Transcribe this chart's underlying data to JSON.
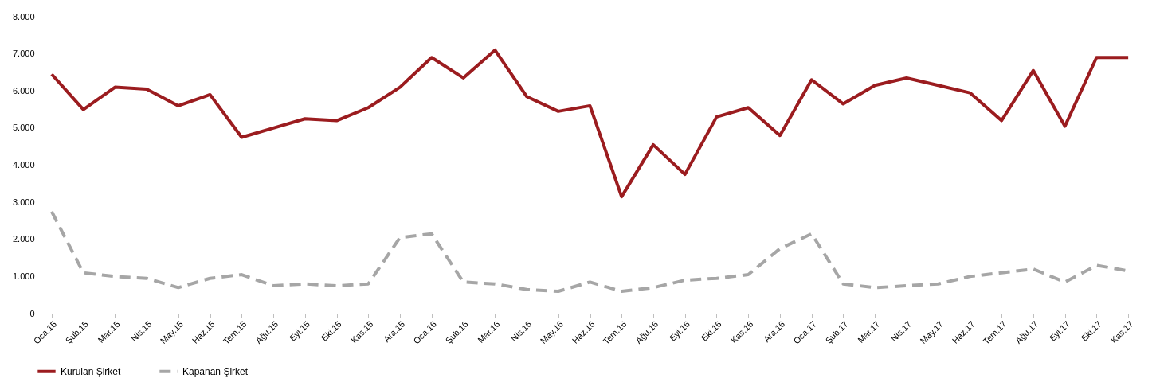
{
  "chart_data": {
    "type": "line",
    "categories": [
      "Oca.15",
      "Şub.15",
      "Mar.15",
      "Nis.15",
      "May.15",
      "Haz.15",
      "Tem.15",
      "Ağu.15",
      "Eyl.15",
      "Eki.15",
      "Kas.15",
      "Ara.15",
      "Oca.16",
      "Şub.16",
      "Mar.16",
      "Nis.16",
      "May.16",
      "Haz.16",
      "Tem.16",
      "Ağu.16",
      "Eyl.16",
      "Eki.16",
      "Kas.16",
      "Ara.16",
      "Oca.17",
      "Şub.17",
      "Mar.17",
      "Nis.17",
      "May.17",
      "Haz.17",
      "Tem.17",
      "Ağu.17",
      "Eyl.17",
      "Eki.17",
      "Kas.17"
    ],
    "series": [
      {
        "name": "Kurulan Şirket",
        "color": "#9b1c1f",
        "line_style": "solid",
        "values": [
          6450,
          5500,
          6100,
          6050,
          5600,
          5900,
          4750,
          5000,
          5250,
          5200,
          5550,
          6100,
          6900,
          6350,
          7100,
          5850,
          5450,
          5600,
          3150,
          4550,
          3750,
          5300,
          5550,
          4800,
          6300,
          5650,
          6150,
          6350,
          6150,
          5950,
          5200,
          6550,
          5050,
          6900,
          6900
        ]
      },
      {
        "name": "Kapanan Şirket",
        "color": "#a6a6a6",
        "line_style": "dashed",
        "values": [
          2750,
          1100,
          1000,
          950,
          700,
          950,
          1050,
          750,
          800,
          750,
          800,
          2050,
          2150,
          850,
          800,
          650,
          600,
          850,
          600,
          700,
          900,
          950,
          1050,
          1750,
          2150,
          800,
          700,
          750,
          800,
          1000,
          1100,
          1200,
          850,
          1300,
          1150
        ]
      }
    ],
    "ylim": [
      0,
      8000
    ],
    "yticks": [
      0,
      {
        "value": 1000,
        "label": "1.000"
      },
      {
        "value": 2000,
        "label": "2.000"
      },
      {
        "value": 3000,
        "label": "3.000"
      },
      {
        "value": 4000,
        "label": "4.000"
      },
      {
        "value": 5000,
        "label": "5.000"
      },
      {
        "value": 6000,
        "label": "6.000"
      },
      {
        "value": 7000,
        "label": "7.000"
      },
      {
        "value": 8000,
        "label": "8.000"
      }
    ],
    "grid": false,
    "legend": "bottom",
    "marker": "none"
  }
}
